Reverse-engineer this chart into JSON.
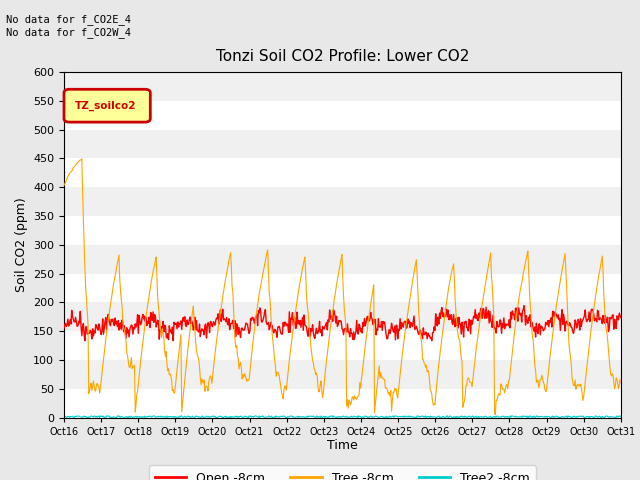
{
  "title": "Tonzi Soil CO2 Profile: Lower CO2",
  "ylabel": "Soil CO2 (ppm)",
  "xlabel": "Time",
  "ylim": [
    0,
    600
  ],
  "yticks": [
    0,
    50,
    100,
    150,
    200,
    250,
    300,
    350,
    400,
    450,
    500,
    550,
    600
  ],
  "xtick_labels": [
    "Oct 16",
    "Oct 17",
    "Oct 18",
    "Oct 19",
    "Oct 20",
    "Oct 21",
    "Oct 22",
    "Oct 23",
    "Oct 24",
    "Oct 25",
    "Oct 26",
    "Oct 27",
    "Oct 28",
    "Oct 29",
    "Oct 30",
    "Oct 31"
  ],
  "annotation_text": "No data for f_CO2E_4\nNo data for f_CO2W_4",
  "legend_title_text": "TZ_soilco2",
  "legend_entries": [
    "Open -8cm",
    "Tree -8cm",
    "Tree2 -8cm"
  ],
  "legend_colors": [
    "#ff0000",
    "#ffa500",
    "#00cccc"
  ],
  "line_colors": {
    "open": "#ff0000",
    "tree": "#ffa500",
    "tree2": "#00cccc"
  },
  "bg_color": "#e8e8e8",
  "plot_bg_color": "#f0f0f0",
  "stripe_color": "#ffffff",
  "n_days": 15,
  "seed": 42
}
